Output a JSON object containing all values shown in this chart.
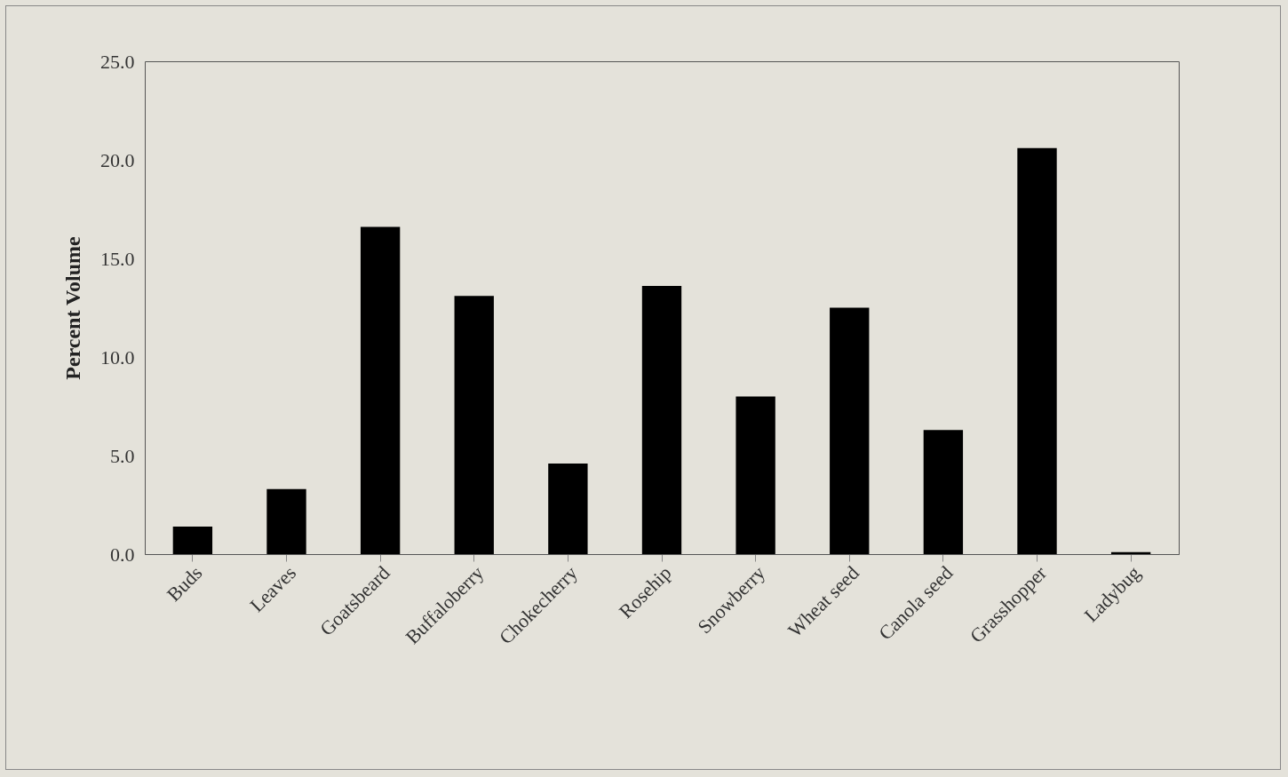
{
  "chart_data": {
    "type": "bar",
    "ylabel": "Percent Volume",
    "categories": [
      "Buds",
      "Leaves",
      "Goatsbeard",
      "Buffaloberry",
      "Chokecherry",
      "Rosehip",
      "Snowberry",
      "Wheat seed",
      "Canola seed",
      "Grasshopper",
      "Ladybug"
    ],
    "values": [
      1.4,
      3.3,
      16.6,
      13.1,
      4.6,
      13.6,
      8.0,
      12.5,
      6.3,
      20.6,
      0.1
    ],
    "color": "#000000",
    "ylim": [
      0,
      25
    ],
    "yticks": [
      {
        "value": 0,
        "label": "0.0"
      },
      {
        "value": 5,
        "label": "5.0"
      },
      {
        "value": 10,
        "label": "10.0"
      },
      {
        "value": 15,
        "label": "15.0"
      },
      {
        "value": 20,
        "label": "20.0"
      },
      {
        "value": 25,
        "label": "25.0"
      }
    ],
    "grid": false
  }
}
